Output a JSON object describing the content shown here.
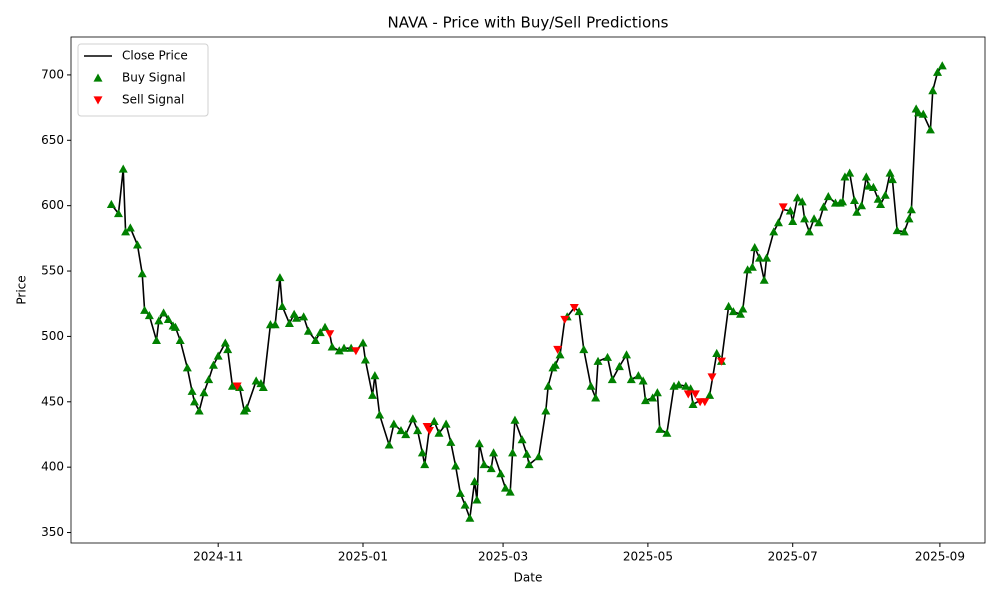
{
  "chart_data": {
    "type": "line",
    "title": "NAVA - Price with Buy/Sell Predictions",
    "x_label": "Date",
    "y_label": "Price",
    "xlim": [
      -1,
      384
    ],
    "xticks": [
      {
        "value": 61,
        "label": "2024-11"
      },
      {
        "value": 122,
        "label": "2025-01"
      },
      {
        "value": 181,
        "label": "2025-03"
      },
      {
        "value": 242,
        "label": "2025-05"
      },
      {
        "value": 303,
        "label": "2025-07"
      },
      {
        "value": 365,
        "label": "2025-09"
      }
    ],
    "ylim": [
      342,
      729
    ],
    "yticks": [
      350,
      400,
      450,
      500,
      550,
      600,
      650,
      700
    ],
    "legend": "upper left",
    "x": [
      16,
      19,
      21,
      22,
      24,
      27,
      29,
      30,
      32,
      35,
      36,
      38,
      40,
      42,
      43,
      45,
      48,
      50,
      51,
      53,
      55,
      57,
      59,
      61,
      64,
      65,
      67,
      70,
      72,
      73,
      77,
      79,
      80,
      83,
      85,
      87,
      88,
      91,
      93,
      94,
      97,
      99,
      102,
      104,
      106,
      108,
      109,
      112,
      114,
      117,
      119,
      122,
      123,
      126,
      127,
      129,
      133,
      135,
      138,
      140,
      143,
      145,
      147,
      148,
      150,
      152,
      154,
      157,
      159,
      161,
      163,
      165,
      167,
      169,
      170,
      171,
      173,
      176,
      177,
      180,
      182,
      184,
      185,
      186,
      189,
      191,
      192,
      196,
      199,
      200,
      202,
      203,
      205,
      207,
      208,
      211,
      213,
      215,
      218,
      220,
      221,
      225,
      227,
      230,
      233,
      235,
      238,
      240,
      241,
      244,
      246,
      247,
      250,
      253,
      255,
      258,
      260,
      261,
      264,
      266,
      268,
      271,
      273,
      276,
      278,
      281,
      282,
      284,
      286,
      287,
      289,
      291,
      292,
      295,
      297,
      299,
      302,
      303,
      305,
      307,
      308,
      310,
      312,
      314,
      316,
      318,
      321,
      323,
      324,
      325,
      327,
      329,
      330,
      332,
      334,
      335,
      337,
      339,
      340,
      342,
      344,
      345,
      347,
      350,
      352,
      353,
      355,
      356,
      358,
      361,
      362,
      364,
      366
    ],
    "series": [
      {
        "name": "Close Price",
        "kind": "line",
        "color": "#000000",
        "values": [
          601,
          594,
          628,
          580,
          583,
          570,
          548,
          520,
          516,
          497,
          512,
          518,
          513,
          508,
          507,
          497,
          476,
          458,
          450,
          443,
          457,
          467,
          478,
          485,
          495,
          490,
          462,
          461,
          443,
          445,
          466,
          464,
          461,
          509,
          509,
          545,
          523,
          510,
          517,
          514,
          515,
          504,
          497,
          503,
          507,
          502,
          492,
          489,
          491,
          491,
          489,
          495,
          482,
          455,
          470,
          440,
          417,
          433,
          428,
          425,
          437,
          428,
          411,
          402,
          430,
          435,
          426,
          433,
          419,
          401,
          380,
          371,
          361,
          389,
          375,
          418,
          402,
          399,
          411,
          395,
          384,
          381,
          411,
          436,
          421,
          410,
          402,
          408,
          443,
          462,
          476,
          478,
          486,
          513,
          515,
          522,
          519,
          490,
          462,
          453,
          481,
          484,
          467,
          477,
          486,
          467,
          470,
          466,
          451,
          453,
          457,
          429,
          426,
          462,
          463,
          462,
          460,
          448,
          451,
          451,
          455,
          487,
          481,
          523,
          519,
          517,
          521,
          551,
          553,
          568,
          560,
          543,
          560,
          580,
          587,
          597,
          596,
          588,
          606,
          603,
          590,
          580,
          590,
          587,
          599,
          607,
          602,
          602,
          603,
          622,
          625,
          604,
          595,
          600,
          622,
          615,
          614,
          605,
          601,
          608,
          625,
          620,
          581,
          580,
          590,
          597,
          674,
          671,
          670,
          658,
          688,
          702,
          707
        ]
      },
      {
        "name": "Buy Signal",
        "kind": "up",
        "color": "#008000",
        "values": [
          601,
          594,
          628,
          580,
          583,
          570,
          548,
          520,
          516,
          497,
          512,
          518,
          513,
          508,
          507,
          497,
          476,
          458,
          450,
          443,
          457,
          467,
          478,
          485,
          495,
          490,
          462,
          461,
          443,
          445,
          466,
          464,
          461,
          509,
          509,
          545,
          523,
          510,
          517,
          514,
          515,
          504,
          497,
          503,
          507,
          null,
          492,
          489,
          491,
          491,
          null,
          495,
          482,
          455,
          470,
          440,
          417,
          433,
          428,
          425,
          437,
          428,
          411,
          402,
          null,
          435,
          426,
          433,
          419,
          401,
          380,
          371,
          361,
          389,
          375,
          418,
          402,
          399,
          411,
          395,
          384,
          381,
          411,
          436,
          421,
          410,
          402,
          408,
          443,
          462,
          476,
          478,
          486,
          null,
          515,
          null,
          519,
          490,
          462,
          453,
          481,
          484,
          467,
          477,
          486,
          467,
          470,
          466,
          451,
          453,
          457,
          429,
          426,
          462,
          463,
          462,
          460,
          448,
          null,
          null,
          455,
          487,
          481,
          523,
          519,
          517,
          521,
          551,
          553,
          568,
          560,
          543,
          560,
          580,
          587,
          null,
          596,
          588,
          606,
          603,
          590,
          580,
          590,
          587,
          599,
          607,
          602,
          602,
          603,
          622,
          625,
          604,
          595,
          600,
          622,
          615,
          614,
          605,
          601,
          608,
          625,
          620,
          581,
          580,
          590,
          597,
          674,
          671,
          670,
          658,
          688,
          702,
          707
        ]
      },
      {
        "name": "Sell Signal",
        "kind": "down",
        "color": "#ff0000",
        "x": [
          69,
          108,
          119,
          149,
          150,
          204,
          207,
          211,
          259,
          262,
          264,
          266,
          269,
          273,
          299
        ],
        "values": [
          462,
          502,
          489,
          431,
          428,
          490,
          513,
          522,
          456,
          456,
          450,
          450,
          469,
          481,
          599
        ]
      }
    ]
  }
}
